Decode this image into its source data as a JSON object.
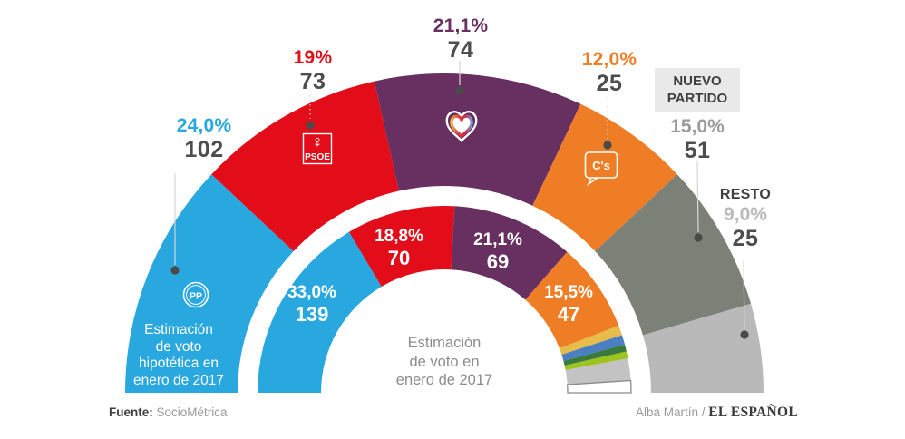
{
  "canvas": {
    "background": "#ffffff"
  },
  "chart_data": {
    "type": "pie",
    "subtype": "semicircle double donut (parliament seat projection, arcs sized by percent)",
    "grid": false,
    "legend_position": "callout labels with leader lines and dots",
    "outer_ring": {
      "caption_lines": [
        "Estimación",
        "de voto",
        "hipotética en",
        "enero de 2017"
      ],
      "segments": [
        {
          "party": "PP",
          "percent_label": "24,0%",
          "percent_value": 24.0,
          "seats": 102,
          "color": "#29a7df",
          "label_color": "#29a7df"
        },
        {
          "party": "PSOE",
          "percent_label": "19%",
          "percent_value": 19.0,
          "seats": 73,
          "color": "#e20d18",
          "label_color": "#e20d18"
        },
        {
          "party": "PODEMOS",
          "percent_label": "21,1%",
          "percent_value": 21.1,
          "seats": 74,
          "color": "#683061",
          "label_color": "#683061"
        },
        {
          "party": "C's",
          "percent_label": "12,0%",
          "percent_value": 12.0,
          "seats": 25,
          "color": "#ef7d25",
          "label_color": "#ef7d25"
        },
        {
          "party": "NUEVO PARTIDO",
          "percent_label": "15,0%",
          "percent_value": 15.0,
          "seats": 51,
          "color": "#7c8177",
          "label_color": "#9b9b9b"
        },
        {
          "party": "RESTO",
          "percent_label": "9,0%",
          "percent_value": 9.0,
          "seats": 25,
          "color": "#b9b9b9",
          "label_color": "#b9b9b9"
        }
      ]
    },
    "inner_ring": {
      "caption_lines": [
        "Estimación",
        "de voto en",
        "enero de 2017"
      ],
      "segments": [
        {
          "party": "PP",
          "percent_label": "33,0%",
          "percent_value": 33.0,
          "seats": 139,
          "color": "#29a7df"
        },
        {
          "party": "PSOE",
          "percent_label": "18,8%",
          "percent_value": 18.8,
          "seats": 70,
          "color": "#e20d18"
        },
        {
          "party": "PODEMOS",
          "percent_label": "21,1%",
          "percent_value": 21.1,
          "seats": 69,
          "color": "#683061"
        },
        {
          "party": "C's",
          "percent_label": "15,5%",
          "percent_value": 15.5,
          "seats": 47,
          "color": "#ef7d25"
        },
        {
          "party": "minor-1",
          "percent_value": 1.7,
          "color": "#e8bc4a",
          "estimated": true
        },
        {
          "party": "minor-2",
          "percent_value": 1.7,
          "color": "#4a7fc1",
          "estimated": true
        },
        {
          "party": "minor-3",
          "percent_value": 1.2,
          "color": "#3b7a3d",
          "estimated": true
        },
        {
          "party": "minor-4",
          "percent_value": 1.2,
          "color": "#9dc41e",
          "estimated": true
        },
        {
          "party": "minor-5",
          "percent_value": 3.8,
          "color": "#c3c3c3",
          "estimated": true
        },
        {
          "party": "minor-6",
          "percent_value": 2.1,
          "color": "#ffffff",
          "stroke_color": "#8a8a8a",
          "estimated": true
        }
      ]
    }
  },
  "logos": {
    "pp": "PP",
    "psoe": "PSOE",
    "cs": "C's"
  },
  "footer": {
    "source_label": "Fuente:",
    "source_value": "SocioMétrica",
    "credit_author": "Alba Martín /",
    "credit_brand": "EL ESPAÑOL"
  },
  "style": {
    "marker_color": "#4a4a4a",
    "leader_line_color": "#d6d6d6"
  }
}
